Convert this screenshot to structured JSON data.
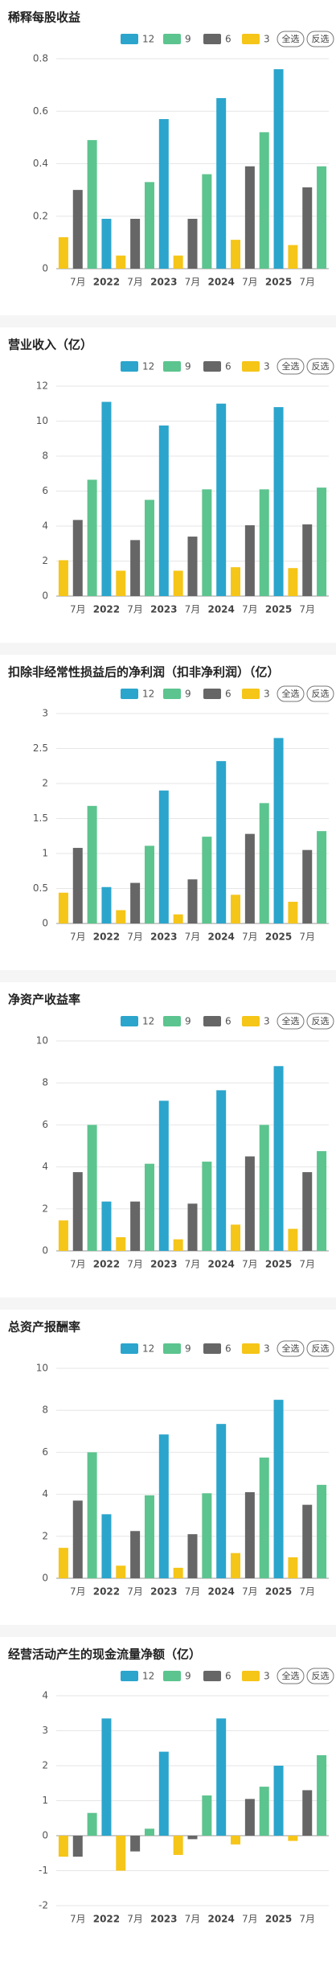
{
  "chart_data": [
    {
      "type": "bar",
      "title": "稀释每股收益",
      "buttons": [
        "全选",
        "反选"
      ],
      "categories": [
        null,
        "7月",
        null,
        "2022",
        null,
        "7月",
        null,
        "2023",
        null,
        "7月",
        null,
        "2024",
        null,
        "7月",
        null,
        "2025",
        null,
        "7月",
        null
      ],
      "series": [
        {
          "name": "12",
          "color": "#2ba5cc",
          "values": [
            null,
            null,
            null,
            0.19,
            null,
            null,
            null,
            0.57,
            null,
            null,
            null,
            0.65,
            null,
            null,
            null,
            0.76,
            null,
            null,
            null
          ]
        },
        {
          "name": "9",
          "color": "#5cc48e",
          "values": [
            null,
            null,
            0.49,
            null,
            null,
            null,
            0.33,
            null,
            null,
            null,
            0.36,
            null,
            null,
            null,
            0.52,
            null,
            null,
            null,
            0.39
          ]
        },
        {
          "name": "6",
          "color": "#666666",
          "values": [
            null,
            0.3,
            null,
            null,
            null,
            0.19,
            null,
            null,
            null,
            0.19,
            null,
            null,
            null,
            0.39,
            null,
            null,
            null,
            0.31,
            null
          ]
        },
        {
          "name": "3",
          "color": "#f5c518",
          "values": [
            0.12,
            null,
            null,
            null,
            0.05,
            null,
            null,
            null,
            0.05,
            null,
            null,
            null,
            0.11,
            null,
            null,
            null,
            0.09,
            null,
            null
          ]
        }
      ],
      "ylim": [
        0,
        0.8
      ],
      "yticks": [
        0,
        0.2,
        0.4,
        0.6,
        0.8
      ],
      "grid": true
    },
    {
      "type": "bar",
      "title": "营业收入（亿）",
      "buttons": [
        "全选",
        "反选"
      ],
      "categories": [
        null,
        "7月",
        null,
        "2022",
        null,
        "7月",
        null,
        "2023",
        null,
        "7月",
        null,
        "2024",
        null,
        "7月",
        null,
        "2025",
        null,
        "7月",
        null
      ],
      "series": [
        {
          "name": "12",
          "color": "#2ba5cc",
          "values": [
            null,
            null,
            null,
            11.1,
            null,
            null,
            null,
            9.75,
            null,
            null,
            null,
            11,
            null,
            null,
            null,
            10.8,
            null,
            null,
            null
          ]
        },
        {
          "name": "9",
          "color": "#5cc48e",
          "values": [
            null,
            null,
            6.65,
            null,
            null,
            null,
            5.5,
            null,
            null,
            null,
            6.1,
            null,
            null,
            null,
            6.1,
            null,
            null,
            null,
            6.2
          ]
        },
        {
          "name": "6",
          "color": "#666666",
          "values": [
            null,
            4.35,
            null,
            null,
            null,
            3.2,
            null,
            null,
            null,
            3.4,
            null,
            null,
            null,
            4.05,
            null,
            null,
            null,
            4.1,
            null
          ]
        },
        {
          "name": "3",
          "color": "#f5c518",
          "values": [
            2.05,
            null,
            null,
            null,
            1.45,
            null,
            null,
            null,
            1.45,
            null,
            null,
            null,
            1.65,
            null,
            null,
            null,
            1.6,
            null,
            null
          ]
        }
      ],
      "ylim": [
        0,
        12
      ],
      "yticks": [
        0,
        2,
        4,
        6,
        8,
        10,
        12
      ],
      "grid": true
    },
    {
      "type": "bar",
      "title": "扣除非经常性损益后的净利润（扣非净利润）（亿）",
      "buttons": [
        "全选",
        "反选"
      ],
      "categories": [
        null,
        "7月",
        null,
        "2022",
        null,
        "7月",
        null,
        "2023",
        null,
        "7月",
        null,
        "2024",
        null,
        "7月",
        null,
        "2025",
        null,
        "7月",
        null
      ],
      "series": [
        {
          "name": "12",
          "color": "#2ba5cc",
          "values": [
            null,
            null,
            null,
            0.52,
            null,
            null,
            null,
            1.9,
            null,
            null,
            null,
            2.32,
            null,
            null,
            null,
            2.65,
            null,
            null,
            null
          ]
        },
        {
          "name": "9",
          "color": "#5cc48e",
          "values": [
            null,
            null,
            1.68,
            null,
            null,
            null,
            1.11,
            null,
            null,
            null,
            1.24,
            null,
            null,
            null,
            1.72,
            null,
            null,
            null,
            1.32
          ]
        },
        {
          "name": "6",
          "color": "#666666",
          "values": [
            null,
            1.08,
            null,
            null,
            null,
            0.58,
            null,
            null,
            null,
            0.63,
            null,
            null,
            null,
            1.28,
            null,
            null,
            null,
            1.05,
            null
          ]
        },
        {
          "name": "3",
          "color": "#f5c518",
          "values": [
            0.44,
            null,
            null,
            null,
            0.19,
            null,
            null,
            null,
            0.13,
            null,
            null,
            null,
            0.41,
            null,
            null,
            null,
            0.31,
            null,
            null
          ]
        }
      ],
      "ylim": [
        0,
        3
      ],
      "yticks": [
        0,
        0.5,
        1,
        1.5,
        2,
        2.5,
        3
      ],
      "grid": true
    },
    {
      "type": "bar",
      "title": "净资产收益率",
      "buttons": [
        "全选",
        "反选"
      ],
      "categories": [
        null,
        "7月",
        null,
        "2022",
        null,
        "7月",
        null,
        "2023",
        null,
        "7月",
        null,
        "2024",
        null,
        "7月",
        null,
        "2025",
        null,
        "7月",
        null
      ],
      "series": [
        {
          "name": "12",
          "color": "#2ba5cc",
          "values": [
            null,
            null,
            null,
            2.35,
            null,
            null,
            null,
            7.15,
            null,
            null,
            null,
            7.65,
            null,
            null,
            null,
            8.8,
            null,
            null,
            null
          ]
        },
        {
          "name": "9",
          "color": "#5cc48e",
          "values": [
            null,
            null,
            6,
            null,
            null,
            null,
            4.15,
            null,
            null,
            null,
            4.25,
            null,
            null,
            null,
            6,
            null,
            null,
            null,
            4.75
          ]
        },
        {
          "name": "6",
          "color": "#666666",
          "values": [
            null,
            3.75,
            null,
            null,
            null,
            2.35,
            null,
            null,
            null,
            2.25,
            null,
            null,
            null,
            4.5,
            null,
            null,
            null,
            3.75,
            null
          ]
        },
        {
          "name": "3",
          "color": "#f5c518",
          "values": [
            1.45,
            null,
            null,
            null,
            0.65,
            null,
            null,
            null,
            0.55,
            null,
            null,
            null,
            1.25,
            null,
            null,
            null,
            1.05,
            null,
            null
          ]
        }
      ],
      "ylim": [
        0,
        10
      ],
      "yticks": [
        0,
        2,
        4,
        6,
        8,
        10
      ],
      "grid": true
    },
    {
      "type": "bar",
      "title": "总资产报酬率",
      "buttons": [
        "全选",
        "反选"
      ],
      "categories": [
        null,
        "7月",
        null,
        "2022",
        null,
        "7月",
        null,
        "2023",
        null,
        "7月",
        null,
        "2024",
        null,
        "7月",
        null,
        "2025",
        null,
        "7月",
        null
      ],
      "series": [
        {
          "name": "12",
          "color": "#2ba5cc",
          "values": [
            null,
            null,
            null,
            3.05,
            null,
            null,
            null,
            6.85,
            null,
            null,
            null,
            7.35,
            null,
            null,
            null,
            8.5,
            null,
            null,
            null
          ]
        },
        {
          "name": "9",
          "color": "#5cc48e",
          "values": [
            null,
            null,
            6,
            null,
            null,
            null,
            3.95,
            null,
            null,
            null,
            4.05,
            null,
            null,
            null,
            5.75,
            null,
            null,
            null,
            4.45
          ]
        },
        {
          "name": "6",
          "color": "#666666",
          "values": [
            null,
            3.7,
            null,
            null,
            null,
            2.25,
            null,
            null,
            null,
            2.1,
            null,
            null,
            null,
            4.1,
            null,
            null,
            null,
            3.5,
            null
          ]
        },
        {
          "name": "3",
          "color": "#f5c518",
          "values": [
            1.45,
            null,
            null,
            null,
            0.6,
            null,
            null,
            null,
            0.5,
            null,
            null,
            null,
            1.2,
            null,
            null,
            null,
            1,
            null,
            null
          ]
        }
      ],
      "ylim": [
        0,
        10
      ],
      "yticks": [
        0,
        2,
        4,
        6,
        8,
        10
      ],
      "grid": true
    },
    {
      "type": "bar",
      "title": "经营活动产生的现金流量净额（亿）",
      "buttons": [
        "全选",
        "反选"
      ],
      "categories": [
        null,
        "7月",
        null,
        "2022",
        null,
        "7月",
        null,
        "2023",
        null,
        "7月",
        null,
        "2024",
        null,
        "7月",
        null,
        "2025",
        null,
        "7月",
        null
      ],
      "series": [
        {
          "name": "12",
          "color": "#2ba5cc",
          "values": [
            null,
            null,
            null,
            3.35,
            null,
            null,
            null,
            2.4,
            null,
            null,
            null,
            3.35,
            null,
            null,
            null,
            2,
            null,
            null,
            null
          ]
        },
        {
          "name": "9",
          "color": "#5cc48e",
          "values": [
            null,
            null,
            0.65,
            null,
            null,
            null,
            0.2,
            null,
            null,
            null,
            1.15,
            null,
            null,
            null,
            1.4,
            null,
            null,
            null,
            2.3
          ]
        },
        {
          "name": "6",
          "color": "#666666",
          "values": [
            null,
            -0.6,
            null,
            null,
            null,
            -0.45,
            null,
            null,
            null,
            -0.1,
            null,
            null,
            null,
            1.05,
            null,
            null,
            null,
            1.3,
            null
          ]
        },
        {
          "name": "3",
          "color": "#f5c518",
          "values": [
            -0.6,
            null,
            null,
            null,
            -1,
            null,
            null,
            null,
            -0.55,
            null,
            null,
            null,
            -0.25,
            null,
            null,
            null,
            -0.15,
            null,
            null
          ]
        }
      ],
      "ylim": [
        -2,
        4
      ],
      "yticks": [
        -2,
        -1,
        0,
        1,
        2,
        3,
        4
      ],
      "grid": true
    }
  ]
}
